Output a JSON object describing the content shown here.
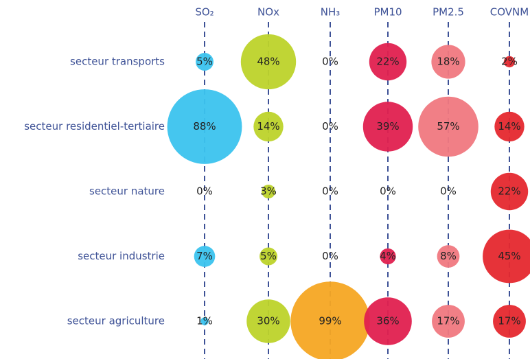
{
  "chart_data": {
    "type": "bubble",
    "categories": [
      "secteur transports",
      "secteur residentiel-tertiaire",
      "secteur nature",
      "secteur industrie",
      "secteur agriculture"
    ],
    "series": [
      {
        "name": "SO₂",
        "color": "#3bc3ee",
        "values": [
          5,
          88,
          0,
          7,
          1
        ],
        "value_labels": [
          "5%",
          "88%",
          "0%",
          "7%",
          "1%"
        ]
      },
      {
        "name": "NOx",
        "color": "#bdd32a",
        "values": [
          48,
          14,
          3,
          5,
          30
        ],
        "value_labels": [
          "48%",
          "14%",
          "3%",
          "5%",
          "30%"
        ]
      },
      {
        "name": "NH₃",
        "color": "#f5a623",
        "values": [
          0,
          0,
          0,
          0,
          99
        ],
        "value_labels": [
          "0%",
          "0%",
          "0%",
          "0%",
          "99%"
        ]
      },
      {
        "name": "PM10",
        "color": "#e0204f",
        "values": [
          22,
          39,
          0,
          4,
          36
        ],
        "value_labels": [
          "22%",
          "39%",
          "0%",
          "4%",
          "36%"
        ]
      },
      {
        "name": "PM2.5",
        "color": "#f07880",
        "values": [
          18,
          57,
          0,
          8,
          17
        ],
        "value_labels": [
          "18%",
          "57%",
          "0%",
          "8%",
          "17%"
        ]
      },
      {
        "name": "COVNM",
        "color": "#e5282e",
        "values": [
          2,
          14,
          22,
          45,
          17
        ],
        "value_labels": [
          "2%",
          "14%",
          "22%",
          "45%",
          "17%"
        ]
      }
    ]
  }
}
